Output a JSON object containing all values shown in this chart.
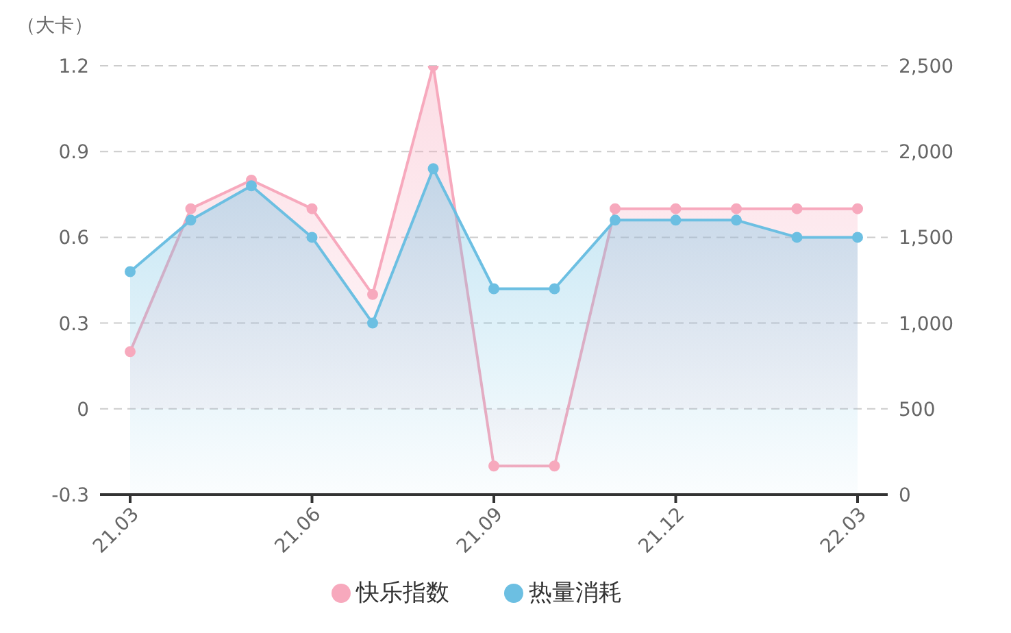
{
  "chart_data": {
    "type": "area",
    "ylabel": "（大卡）",
    "categories": [
      "21.03",
      null,
      null,
      "21.06",
      null,
      null,
      "21.09",
      null,
      null,
      "21.12",
      null,
      null,
      "22.03"
    ],
    "series": [
      {
        "name": "快乐指数",
        "color": "#f7a9bd",
        "values": [
          0.2,
          0.7,
          0.8,
          0.7,
          0.4,
          1.2,
          -0.2,
          -0.2,
          0.7,
          0.7,
          0.7,
          0.7,
          0.7
        ]
      },
      {
        "name": "热量消耗",
        "color": "#6cbfe2",
        "axis": "y2",
        "values": [
          1300,
          1600,
          1800,
          1500,
          1000,
          1900,
          1200,
          1200,
          1600,
          1600,
          1600,
          1500,
          1500
        ]
      }
    ],
    "ylim": [
      -0.3,
      1.2
    ],
    "yticks": [
      -0.3,
      0,
      0.3,
      0.6,
      0.9,
      1.2
    ],
    "y2lim": [
      0,
      2500
    ],
    "y2ticks": [
      0,
      500,
      {
        "value": 1000,
        "label": "1,000"
      },
      {
        "value": 1500,
        "label": "1,500"
      },
      {
        "value": 2000,
        "label": "2,000"
      },
      {
        "value": 2500,
        "label": "2,500"
      }
    ],
    "grid": "y",
    "legend": "bottom",
    "marker": "circle",
    "line_style": "solid"
  }
}
